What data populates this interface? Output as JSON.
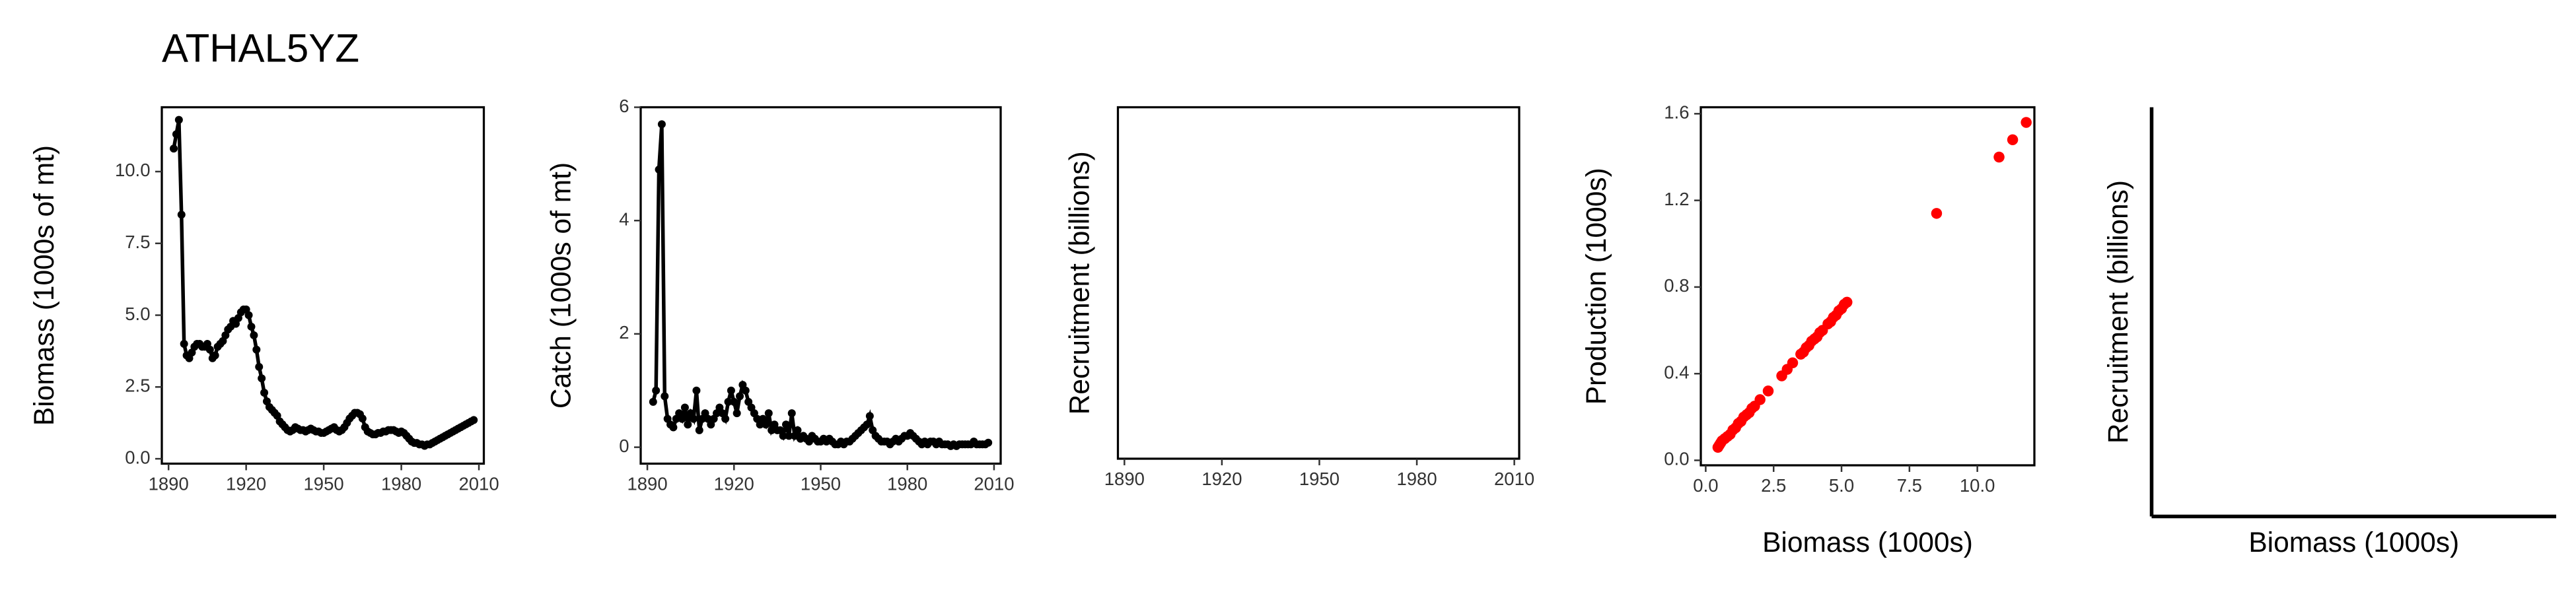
{
  "title": "ATHAL5YZ",
  "chart_data": [
    {
      "type": "line",
      "ylabel": "Biomass (1000s of mt)",
      "color": "#000000",
      "x": [
        1892,
        1893,
        1894,
        1895,
        1896,
        1897,
        1898,
        1899,
        1900,
        1901,
        1902,
        1903,
        1904,
        1905,
        1906,
        1907,
        1908,
        1909,
        1910,
        1911,
        1912,
        1913,
        1914,
        1915,
        1916,
        1917,
        1918,
        1919,
        1920,
        1921,
        1922,
        1923,
        1924,
        1925,
        1926,
        1927,
        1928,
        1929,
        1930,
        1931,
        1932,
        1933,
        1934,
        1935,
        1936,
        1937,
        1938,
        1939,
        1940,
        1941,
        1942,
        1943,
        1944,
        1945,
        1946,
        1947,
        1948,
        1949,
        1950,
        1951,
        1952,
        1953,
        1954,
        1955,
        1956,
        1957,
        1958,
        1959,
        1960,
        1961,
        1962,
        1963,
        1964,
        1965,
        1966,
        1967,
        1968,
        1969,
        1970,
        1971,
        1972,
        1973,
        1974,
        1975,
        1976,
        1977,
        1978,
        1979,
        1980,
        1981,
        1982,
        1983,
        1984,
        1985,
        1986,
        1987,
        1988,
        1989,
        1990,
        1991,
        1992,
        1993,
        1994,
        1995,
        1996,
        1997,
        1998,
        1999,
        2000,
        2001,
        2002,
        2003,
        2004,
        2005,
        2006,
        2007,
        2008
      ],
      "values": [
        10.8,
        11.3,
        11.8,
        8.5,
        4.0,
        3.6,
        3.5,
        3.7,
        3.9,
        4.0,
        4.0,
        3.9,
        3.9,
        4.0,
        3.8,
        3.5,
        3.6,
        3.9,
        4.0,
        4.1,
        4.3,
        4.5,
        4.6,
        4.8,
        4.7,
        4.9,
        5.1,
        5.2,
        5.2,
        5.0,
        4.6,
        4.3,
        3.8,
        3.2,
        2.8,
        2.3,
        2.0,
        1.8,
        1.7,
        1.6,
        1.5,
        1.3,
        1.2,
        1.1,
        1.0,
        0.95,
        1.0,
        1.1,
        1.05,
        1.0,
        1.0,
        0.95,
        1.0,
        1.05,
        1.0,
        0.95,
        0.95,
        0.9,
        0.9,
        0.95,
        1.0,
        1.05,
        1.1,
        1.0,
        0.95,
        1.0,
        1.1,
        1.25,
        1.4,
        1.5,
        1.6,
        1.6,
        1.55,
        1.4,
        1.1,
        0.95,
        0.9,
        0.85,
        0.85,
        0.9,
        0.9,
        0.95,
        0.95,
        1.0,
        1.0,
        1.0,
        0.95,
        0.9,
        0.95,
        0.9,
        0.8,
        0.7,
        0.6,
        0.55,
        0.55,
        0.5,
        0.5,
        0.45,
        0.5,
        0.5,
        0.55,
        0.6,
        0.65,
        0.7,
        0.75,
        0.8,
        0.85,
        0.9,
        0.95,
        1.0,
        1.05,
        1.1,
        1.15,
        1.2,
        1.25,
        1.3,
        1.35
      ],
      "xlim": [
        1887.4,
        2011.9
      ],
      "xticks": [
        1890,
        1920,
        1950,
        1980,
        2010
      ],
      "ylim": [
        -0.17,
        12.24
      ],
      "yticks": [
        {
          "value": 0,
          "label": "0.0"
        },
        2.5,
        {
          "value": 5,
          "label": "5.0"
        },
        7.5,
        {
          "value": 10,
          "label": "10.0"
        }
      ]
    },
    {
      "type": "line",
      "ylabel": "Catch (1000s of mt)",
      "color": "#000000",
      "x": [
        1892,
        1893,
        1894,
        1895,
        1896,
        1897,
        1898,
        1899,
        1900,
        1901,
        1902,
        1903,
        1904,
        1905,
        1906,
        1907,
        1908,
        1909,
        1910,
        1911,
        1912,
        1913,
        1914,
        1915,
        1916,
        1917,
        1918,
        1919,
        1920,
        1921,
        1922,
        1923,
        1924,
        1925,
        1926,
        1927,
        1928,
        1929,
        1930,
        1931,
        1932,
        1933,
        1934,
        1935,
        1936,
        1937,
        1938,
        1939,
        1940,
        1941,
        1942,
        1943,
        1944,
        1945,
        1946,
        1947,
        1948,
        1949,
        1950,
        1951,
        1952,
        1953,
        1954,
        1955,
        1956,
        1957,
        1958,
        1959,
        1960,
        1961,
        1962,
        1963,
        1964,
        1965,
        1966,
        1967,
        1968,
        1969,
        1970,
        1971,
        1972,
        1973,
        1974,
        1975,
        1976,
        1977,
        1978,
        1979,
        1980,
        1981,
        1982,
        1983,
        1984,
        1985,
        1986,
        1987,
        1988,
        1989,
        1990,
        1991,
        1992,
        1993,
        1994,
        1995,
        1996,
        1997,
        1998,
        1999,
        2000,
        2001,
        2002,
        2003,
        2004,
        2005,
        2006,
        2007,
        2008
      ],
      "values": [
        0.8,
        1.0,
        4.9,
        5.7,
        0.9,
        0.5,
        0.4,
        0.35,
        0.5,
        0.6,
        0.5,
        0.7,
        0.4,
        0.6,
        0.5,
        1.0,
        0.3,
        0.5,
        0.6,
        0.5,
        0.4,
        0.5,
        0.6,
        0.7,
        0.6,
        0.5,
        0.8,
        1.0,
        0.8,
        0.6,
        0.9,
        1.1,
        1.0,
        0.8,
        0.7,
        0.6,
        0.5,
        0.4,
        0.5,
        0.4,
        0.6,
        0.3,
        0.4,
        0.3,
        0.3,
        0.2,
        0.4,
        0.2,
        0.6,
        0.2,
        0.3,
        0.15,
        0.2,
        0.15,
        0.1,
        0.2,
        0.15,
        0.1,
        0.1,
        0.15,
        0.1,
        0.15,
        0.1,
        0.05,
        0.05,
        0.1,
        0.05,
        0.1,
        0.1,
        0.15,
        0.2,
        0.25,
        0.3,
        0.35,
        0.4,
        0.55,
        0.3,
        0.2,
        0.15,
        0.1,
        0.1,
        0.1,
        0.05,
        0.1,
        0.15,
        0.1,
        0.15,
        0.2,
        0.2,
        0.25,
        0.2,
        0.15,
        0.1,
        0.05,
        0.1,
        0.05,
        0.1,
        0.1,
        0.05,
        0.1,
        0.05,
        0.05,
        0.05,
        0.02,
        0.05,
        0.02,
        0.05,
        0.05,
        0.05,
        0.05,
        0.05,
        0.1,
        0.05,
        0.05,
        0.05,
        0.05,
        0.08
      ],
      "xlim": [
        1887.7,
        2012.3
      ],
      "xticks": [
        1890,
        1920,
        1950,
        1980,
        2010
      ],
      "ylim": [
        -0.29,
        6
      ],
      "yticks": [
        0,
        2,
        4,
        6
      ]
    },
    {
      "type": "line",
      "ylabel": "Recruitment (billions)",
      "xlim": [
        1888,
        2011.5
      ],
      "xticks": [
        1890,
        1920,
        1950,
        1980,
        2010
      ]
    },
    {
      "type": "scatter",
      "xlabel": "Biomass (1000s)",
      "ylabel": "Production (1000s)",
      "color": "#ff0000",
      "x": [
        0.45,
        0.5,
        0.55,
        0.6,
        0.7,
        0.8,
        0.9,
        1.0,
        1.1,
        1.2,
        1.3,
        1.4,
        1.5,
        1.6,
        1.7,
        1.8,
        2.0,
        2.3,
        2.8,
        3.0,
        3.2,
        3.5,
        3.6,
        3.7,
        3.8,
        3.9,
        4.0,
        4.1,
        4.2,
        4.3,
        4.5,
        4.6,
        4.7,
        4.8,
        4.9,
        5.0,
        5.1,
        5.2,
        8.5,
        10.8,
        11.3,
        11.8
      ],
      "values": [
        0.06,
        0.07,
        0.08,
        0.09,
        0.1,
        0.11,
        0.12,
        0.14,
        0.15,
        0.17,
        0.18,
        0.2,
        0.21,
        0.22,
        0.24,
        0.25,
        0.28,
        0.32,
        0.39,
        0.42,
        0.45,
        0.49,
        0.5,
        0.52,
        0.53,
        0.55,
        0.56,
        0.57,
        0.59,
        0.6,
        0.63,
        0.64,
        0.66,
        0.67,
        0.69,
        0.7,
        0.72,
        0.73,
        1.14,
        1.4,
        1.48,
        1.56
      ],
      "xlim": [
        -0.18,
        12.1
      ],
      "xticks": [
        {
          "value": 0,
          "label": "0.0"
        },
        2.5,
        {
          "value": 5,
          "label": "5.0"
        },
        7.5,
        {
          "value": 10,
          "label": "10.0"
        }
      ],
      "ylim": [
        -0.023,
        1.63
      ],
      "yticks": [
        {
          "value": 0,
          "label": "0.0"
        },
        0.4,
        0.8,
        1.2,
        1.6
      ]
    },
    {
      "type": "scatter",
      "xlabel": "Biomass (1000s)",
      "ylabel": "Recruitment (billions)"
    }
  ]
}
